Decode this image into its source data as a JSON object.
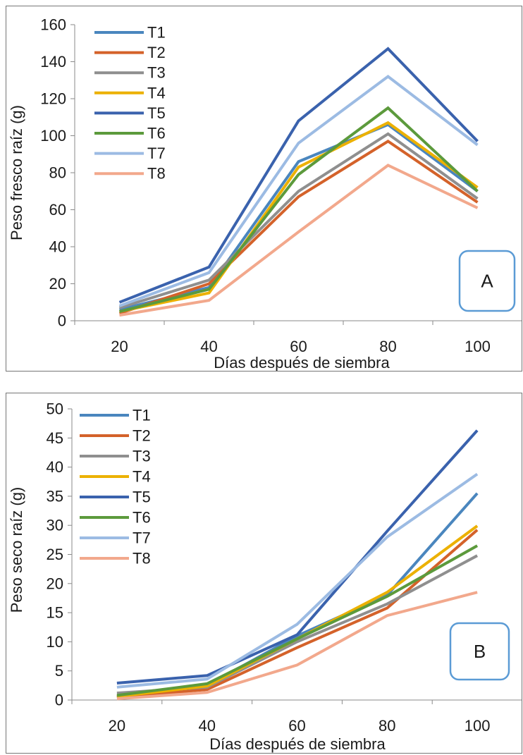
{
  "chart_data": [
    {
      "type": "line",
      "panel_label": "A",
      "xlabel": "Días después de siembra",
      "ylabel": "Peso fresco raíz (g)",
      "categories": [
        "20",
        "40",
        "60",
        "80",
        "100"
      ],
      "ylim": [
        0,
        160
      ],
      "yticks": [
        0,
        20,
        40,
        60,
        80,
        100,
        120,
        140,
        160
      ],
      "legend_position": "top-left",
      "grid": false,
      "series": [
        {
          "name": "T1",
          "color": "#4a86be",
          "values": [
            6,
            18,
            86,
            106,
            70
          ]
        },
        {
          "name": "T2",
          "color": "#d4622a",
          "values": [
            4,
            20,
            67,
            97,
            64
          ]
        },
        {
          "name": "T3",
          "color": "#8f8f8f",
          "values": [
            7,
            22,
            70,
            101,
            66
          ]
        },
        {
          "name": "T4",
          "color": "#ecb100",
          "values": [
            5,
            15,
            83,
            107,
            72
          ]
        },
        {
          "name": "T5",
          "color": "#3a62ad",
          "values": [
            10,
            29,
            108,
            147,
            97
          ]
        },
        {
          "name": "T6",
          "color": "#5c9a3c",
          "values": [
            5,
            17,
            79,
            115,
            70
          ]
        },
        {
          "name": "T7",
          "color": "#9cbbe3",
          "values": [
            8,
            26,
            96,
            132,
            95
          ]
        },
        {
          "name": "T8",
          "color": "#f2a88c",
          "values": [
            3,
            11,
            48,
            84,
            61
          ]
        }
      ]
    },
    {
      "type": "line",
      "panel_label": "B",
      "xlabel": "Días después de siembra",
      "ylabel": "Peso seco raíz (g)",
      "categories": [
        "20",
        "40",
        "60",
        "80",
        "100"
      ],
      "ylim": [
        0,
        50
      ],
      "yticks": [
        0,
        5,
        10,
        15,
        20,
        25,
        30,
        35,
        40,
        45,
        50
      ],
      "legend_position": "top-left",
      "grid": false,
      "series": [
        {
          "name": "T1",
          "color": "#4a86be",
          "values": [
            0.5,
            2.5,
            11,
            18,
            35.5
          ]
        },
        {
          "name": "T2",
          "color": "#d4622a",
          "values": [
            0.5,
            1.8,
            9,
            15.8,
            29.2
          ]
        },
        {
          "name": "T3",
          "color": "#8f8f8f",
          "values": [
            1.2,
            2.2,
            10,
            16.5,
            24.8
          ]
        },
        {
          "name": "T4",
          "color": "#ecb100",
          "values": [
            0.6,
            2.4,
            10.5,
            18.5,
            29.9
          ]
        },
        {
          "name": "T5",
          "color": "#3a62ad",
          "values": [
            2.9,
            4.2,
            11.2,
            29,
            46.3
          ]
        },
        {
          "name": "T6",
          "color": "#5c9a3c",
          "values": [
            0.8,
            2.8,
            10.5,
            17.8,
            26.5
          ]
        },
        {
          "name": "T7",
          "color": "#9cbbe3",
          "values": [
            2.2,
            3.6,
            13,
            28,
            38.8
          ]
        },
        {
          "name": "T8",
          "color": "#f2a88c",
          "values": [
            0.2,
            1.3,
            6,
            14.5,
            18.5
          ]
        }
      ]
    }
  ]
}
